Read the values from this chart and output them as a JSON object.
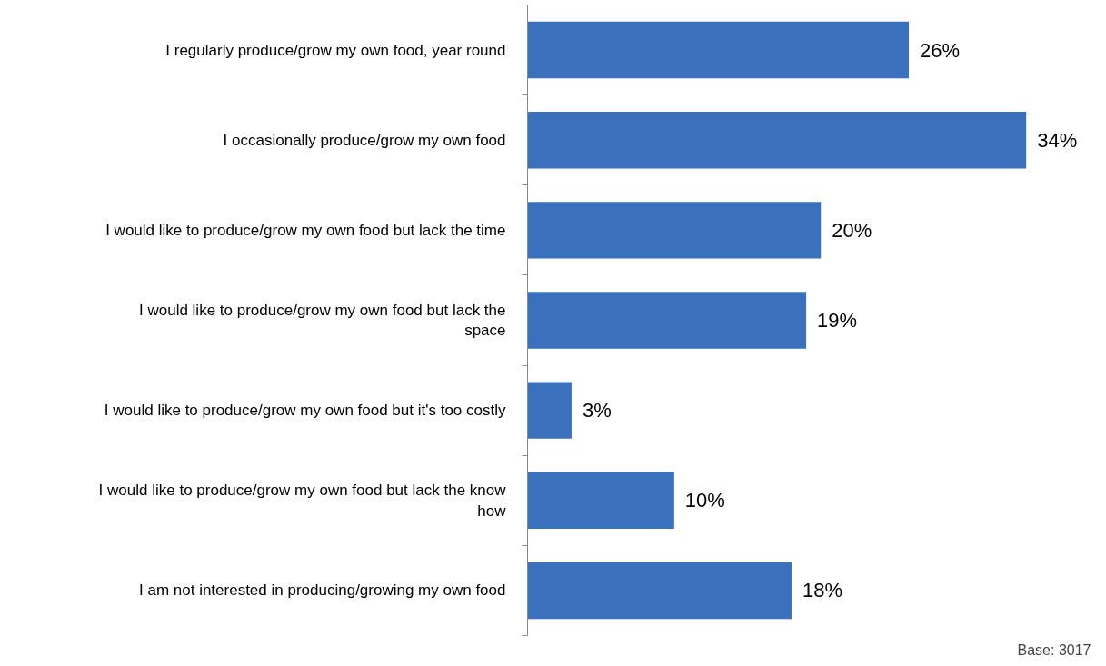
{
  "chart_data": {
    "type": "bar",
    "orientation": "horizontal",
    "categories": [
      "I regularly produce/grow my own food, year round",
      "I occasionally produce/grow my own food",
      "I would like to produce/grow my own food but lack the time",
      "I would like to produce/grow my own food but lack the\nspace",
      "I would like to produce/grow my own food but it's too costly",
      "I would like to produce/grow my own food but lack the know\nhow",
      "I am not interested in producing/growing my own food"
    ],
    "values": [
      26,
      34,
      20,
      19,
      3,
      10,
      18
    ],
    "value_labels": [
      "26%",
      "34%",
      "20%",
      "19%",
      "3%",
      "10%",
      "18%"
    ],
    "color": "#3a70bc",
    "grid": false,
    "annotations": [
      "Base: 3017"
    ]
  }
}
